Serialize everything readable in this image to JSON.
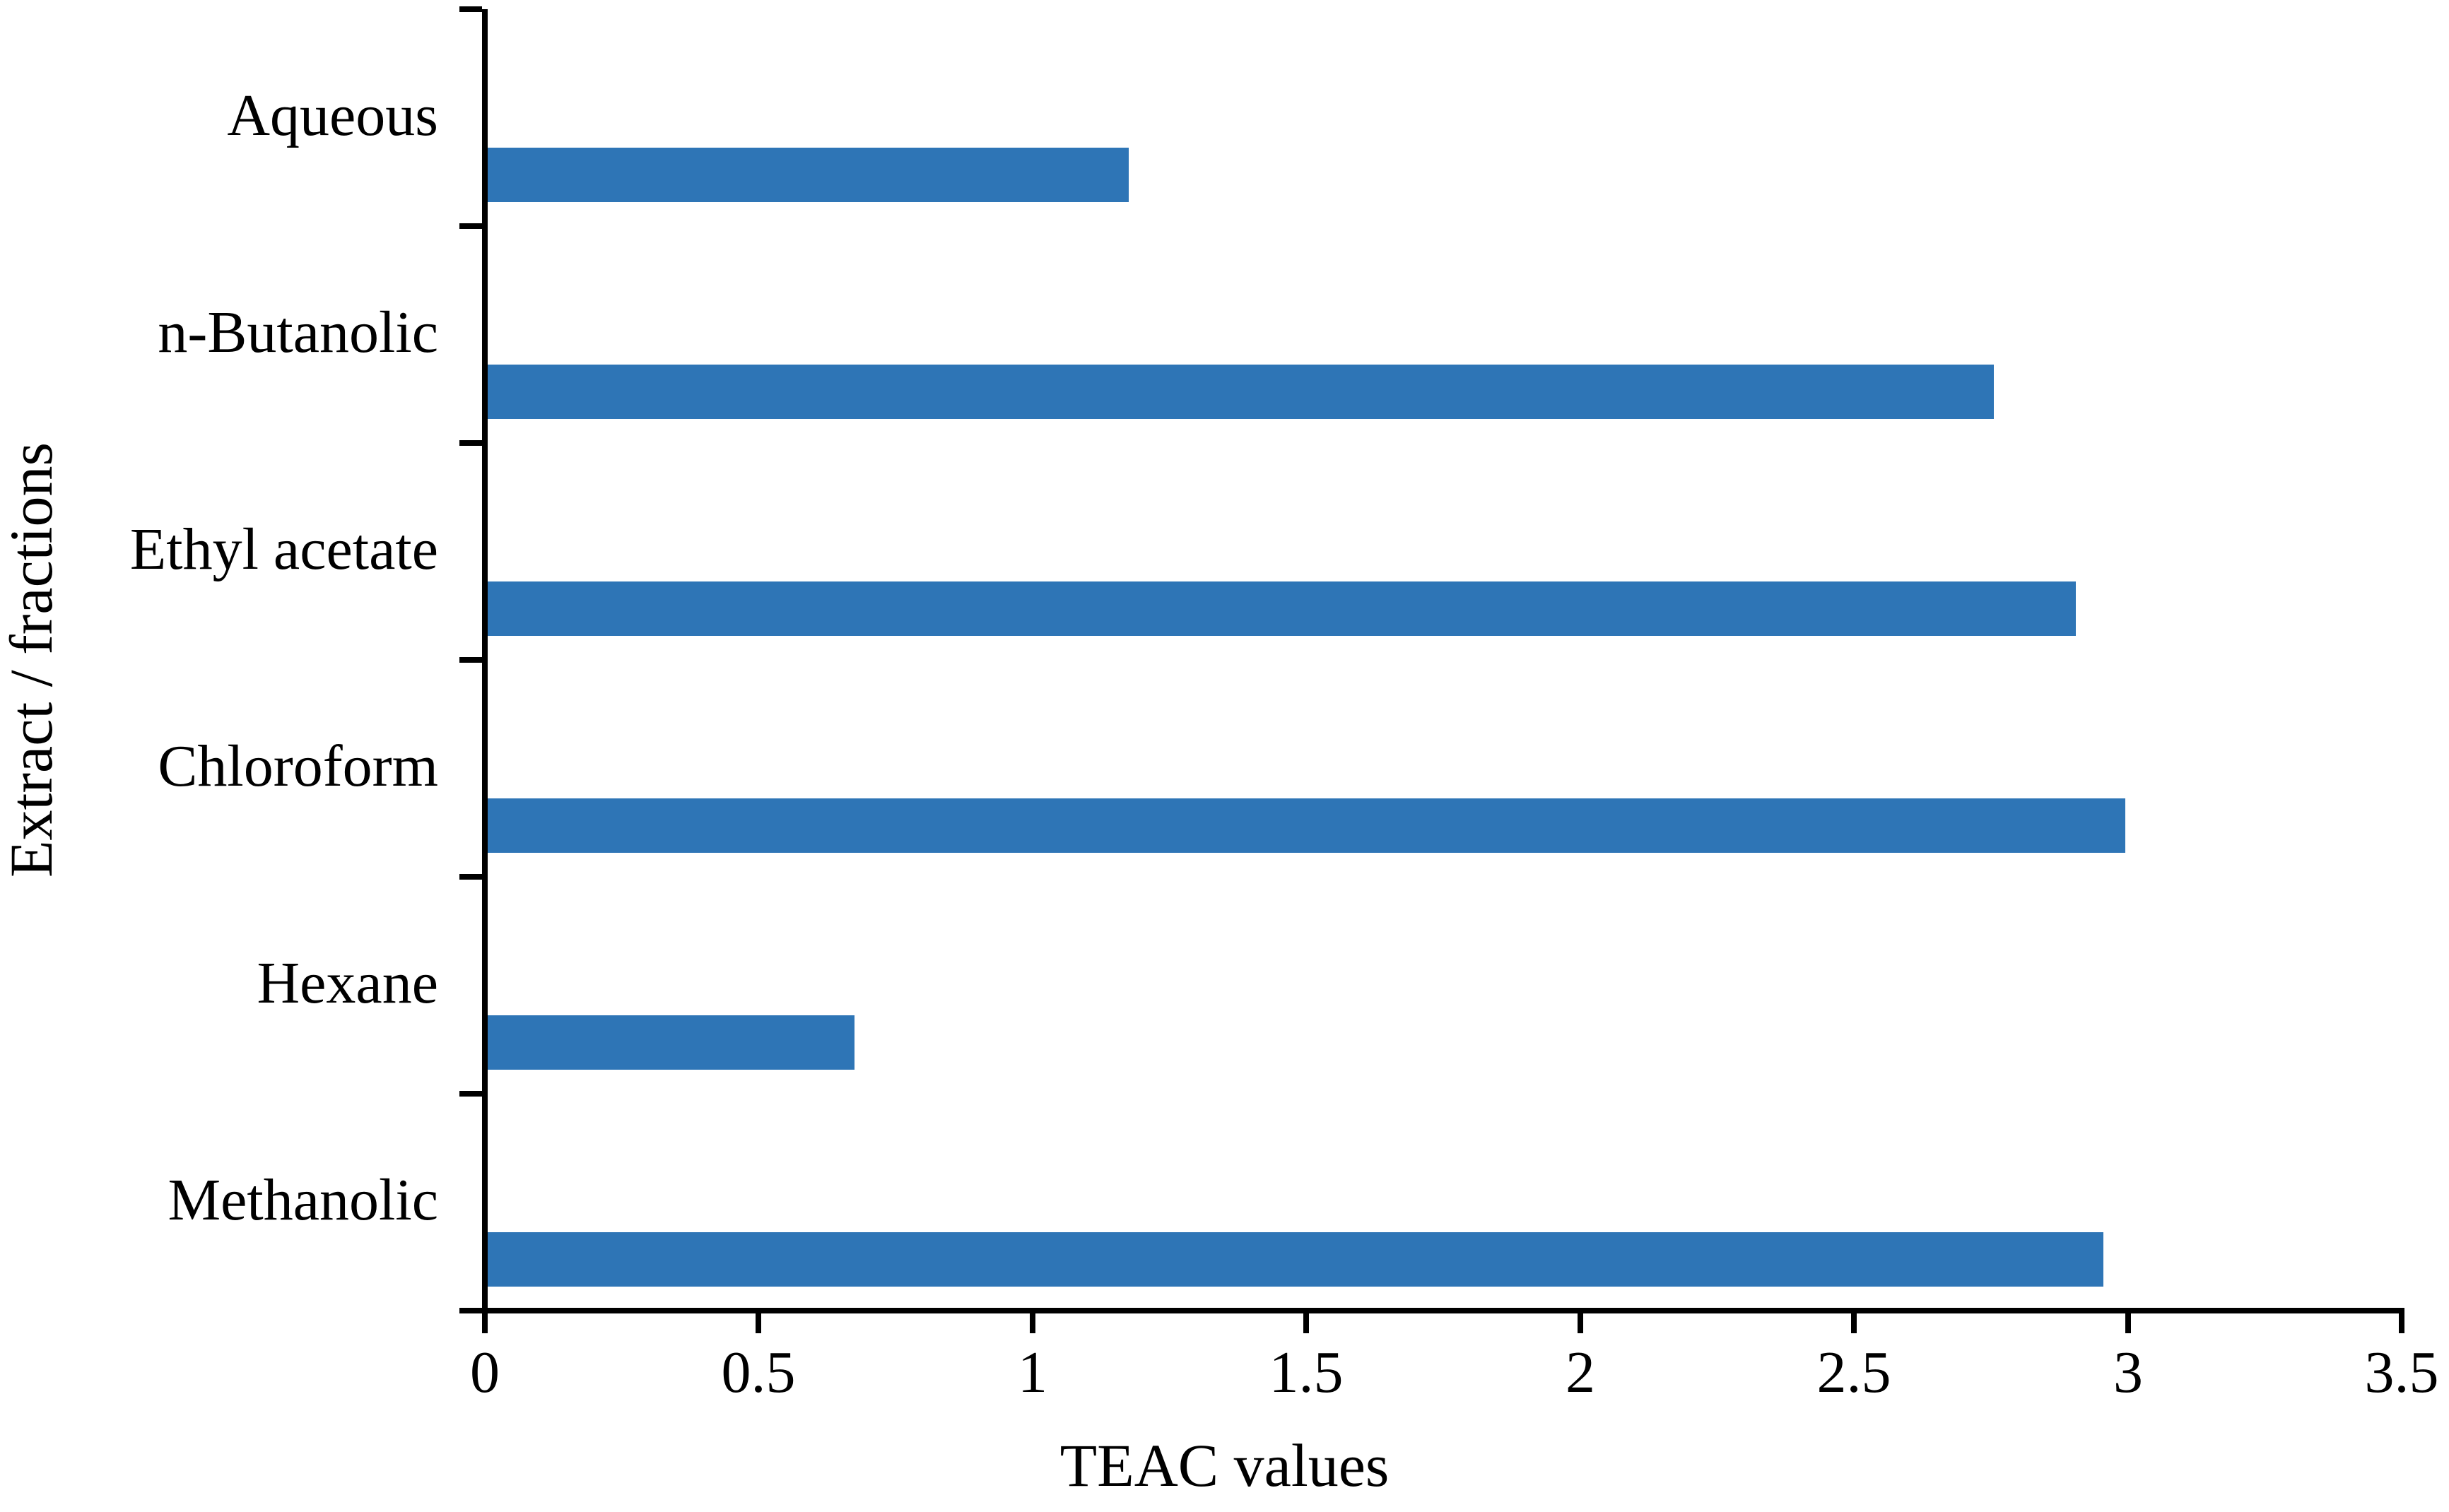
{
  "chart_data": {
    "type": "bar",
    "orientation": "horizontal",
    "title": "",
    "xlabel": "TEAC values",
    "ylabel": "Extract / fractions",
    "categories": [
      "Aqueous",
      "n-Butanolic",
      "Ethyl acetate",
      "Chloroform",
      "Hexane",
      "Methanolic"
    ],
    "values": [
      1.17,
      2.75,
      2.9,
      2.99,
      0.67,
      2.95
    ],
    "category_order": "top-to-bottom",
    "series_name": "TEAC",
    "xlim": [
      0,
      3.5
    ],
    "xticks": [
      0,
      0.5,
      1,
      1.5,
      2,
      2.5,
      3,
      3.5
    ],
    "xtick_labels": [
      "0",
      "0.5",
      "1",
      "1.5",
      "2",
      "2.5",
      "3",
      "3.5"
    ],
    "grid": false,
    "legend": null,
    "bar_color": "#2E75B6",
    "axis_color": "#000000",
    "background_color": "#FFFFFF"
  }
}
